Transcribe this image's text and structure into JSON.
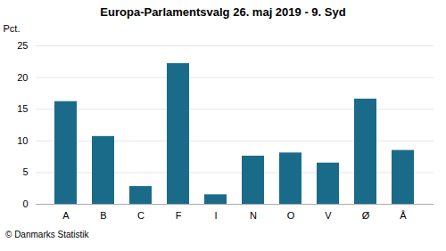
{
  "chart_data": {
    "type": "bar",
    "title": "Europa-Parlamentsvalg 26. maj 2019 - 9. Syd",
    "ylabel": "Pct.",
    "caption": "© Danmarks Statistik",
    "categories": [
      "A",
      "B",
      "C",
      "F",
      "I",
      "N",
      "O",
      "V",
      "Ø",
      "Å"
    ],
    "values": [
      16.2,
      10.7,
      2.8,
      22.2,
      1.5,
      7.6,
      8.1,
      6.5,
      16.6,
      8.5
    ],
    "color": "#1a6b8a",
    "ylim": [
      0,
      25
    ],
    "yticks": [
      0,
      5,
      10,
      15,
      20,
      25
    ],
    "grid": true
  }
}
